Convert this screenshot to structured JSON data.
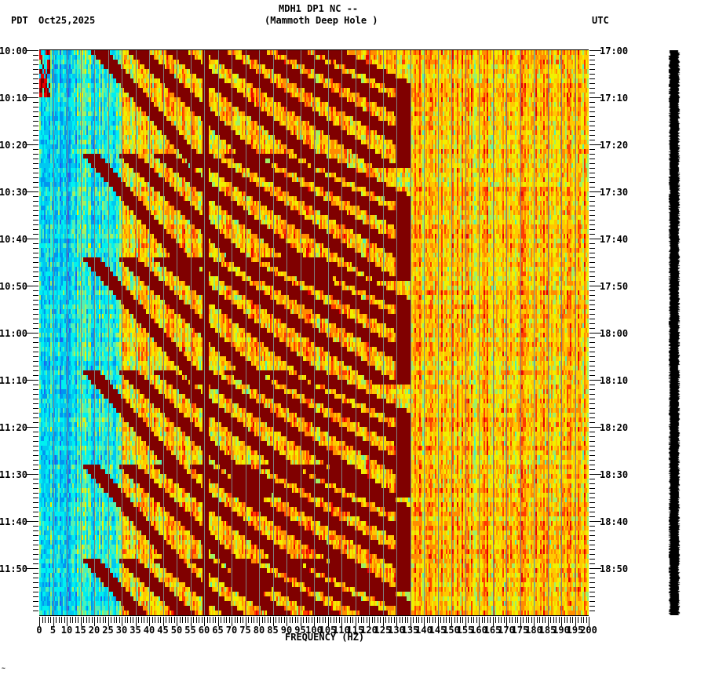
{
  "header": {
    "title_line1": "MDH1 DP1 NC --",
    "title_line2": "(Mammoth Deep Hole )",
    "left_timezone": "PDT",
    "date": "Oct25,2025",
    "right_timezone": "UTC"
  },
  "footer": {
    "corner_mark": "~"
  },
  "colors": {
    "colormap": [
      "#1e64f0",
      "#0096f0",
      "#00c8f0",
      "#00f0f0",
      "#50f0b4",
      "#a0f064",
      "#f0f000",
      "#ffc800",
      "#ff8c00",
      "#ff3c00",
      "#e60000",
      "#800000"
    ],
    "grid": "#808080",
    "axis": "#000000",
    "amp_bar": "#000000"
  },
  "chart_data": {
    "type": "heatmap",
    "title": "MDH1 DP1 NC -- (Mammoth Deep Hole )",
    "xlabel": "FREQUENCY (HZ)",
    "ylabel_left": "PDT",
    "ylabel_right": "UTC",
    "xlim": [
      0,
      200
    ],
    "x_ticks": [
      0,
      5,
      10,
      15,
      20,
      25,
      30,
      35,
      40,
      45,
      50,
      55,
      60,
      65,
      70,
      75,
      80,
      85,
      90,
      95,
      100,
      105,
      110,
      115,
      120,
      125,
      130,
      135,
      140,
      145,
      150,
      155,
      160,
      165,
      170,
      175,
      180,
      185,
      190,
      195,
      200
    ],
    "x_minor_step": 1,
    "y_minutes_span": 120,
    "y_ticks_left": [
      "10:00",
      "10:10",
      "10:20",
      "10:30",
      "10:40",
      "10:50",
      "11:00",
      "11:10",
      "11:20",
      "11:30",
      "11:40",
      "11:50"
    ],
    "y_ticks_right": [
      "17:00",
      "17:10",
      "17:20",
      "17:30",
      "17:40",
      "17:50",
      "18:00",
      "18:10",
      "18:20",
      "18:30",
      "18:40",
      "18:50"
    ],
    "y_minor_step_minutes": 1,
    "grid": "vertical lines every 5 Hz",
    "features": {
      "low_freq_band": {
        "range_hz": [
          0,
          30
        ],
        "level": "low (blue/cyan)"
      },
      "high_freq_band": {
        "range_hz": [
          130,
          200
        ],
        "level": "medium (yellow/orange)"
      },
      "constant_line_hz": 60,
      "sweep_bursts_start_minutes": [
        0,
        24,
        46,
        70,
        90,
        110
      ],
      "sweep_description": "Repeated curved dark-red harmonic arcs sweeping from ~20 Hz up to ~130 Hz, each lasting ~20 minutes"
    },
    "colorbar": "none (amplitude trace strip on right)"
  }
}
